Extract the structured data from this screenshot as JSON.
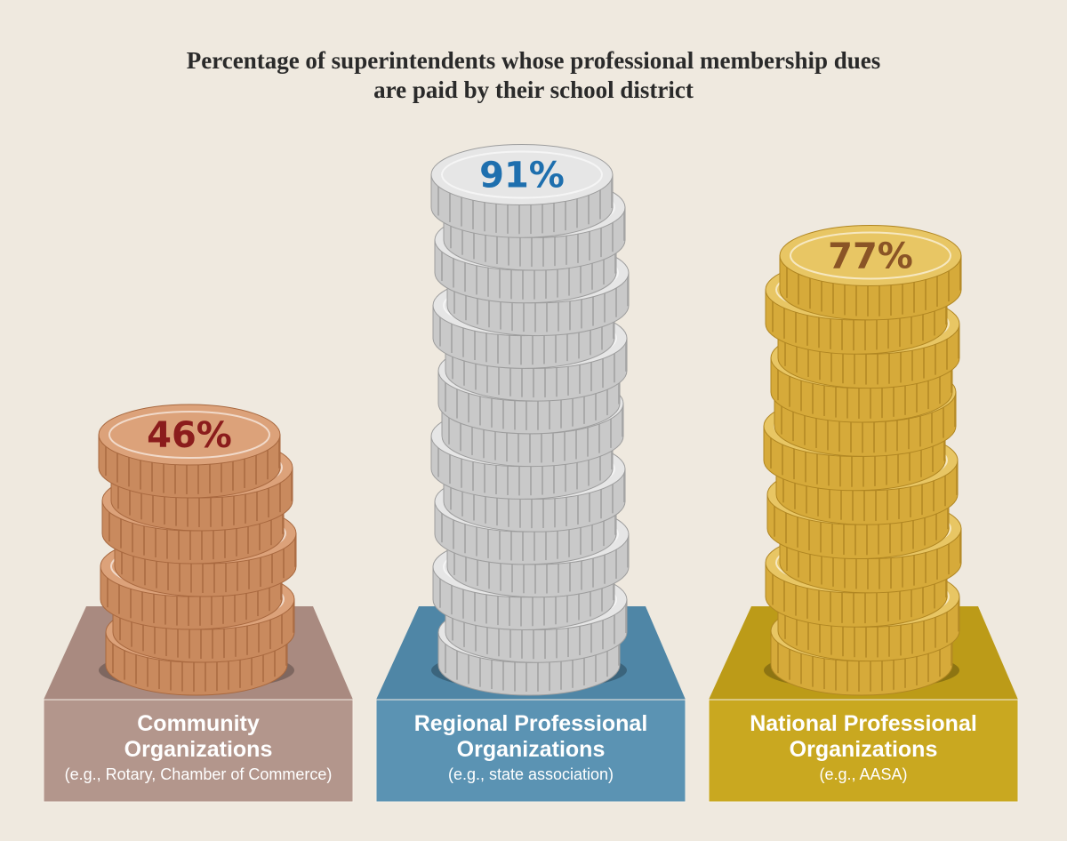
{
  "chart_data": {
    "type": "bar",
    "title": "Percentage of superintendents whose professional membership dues are paid by their school district",
    "title_lines": [
      "Percentage of superintendents whose professional membership dues",
      "are paid by their school district"
    ],
    "categories": [
      "Community Organizations",
      "Regional Professional Organizations",
      "National Professional Organizations"
    ],
    "examples": [
      "(e.g., Rotary, Chamber of Commerce)",
      "(e.g., state association)",
      "(e.g., AASA)"
    ],
    "values": [
      46,
      91,
      77
    ],
    "value_labels": [
      "46%",
      "91%",
      "77%"
    ],
    "ylim": [
      0,
      100
    ],
    "unit": "%",
    "bars": [
      {
        "name_lines": [
          "Community",
          "Organizations"
        ],
        "example": "(e.g., Rotary, Chamber of Commerce)",
        "value": 46,
        "label": "46%",
        "coins": 7,
        "coin_color": "#c98a5e",
        "coin_edge": "#a8683f",
        "coin_face": "#dca27a",
        "pedestal_color": "#b3968c",
        "pedestal_top": "#a98a80",
        "value_color": "#8b1c1c"
      },
      {
        "name_lines": [
          "Regional Professional",
          "Organizations"
        ],
        "example": "(e.g., state association)",
        "value": 91,
        "label": "91%",
        "coins": 15,
        "coin_color": "#c9c9c9",
        "coin_edge": "#9d9d9d",
        "coin_face": "#e6e6e6",
        "pedestal_color": "#5b93b3",
        "pedestal_top": "#4f86a6",
        "value_color": "#1e6fae"
      },
      {
        "name_lines": [
          "National Professional",
          "Organizations"
        ],
        "example": "(e.g., AASA)",
        "value": 77,
        "label": "77%",
        "coins": 12,
        "coin_color": "#d6aa3a",
        "coin_edge": "#b08622",
        "coin_face": "#e8c664",
        "pedestal_color": "#c9a820",
        "pedestal_top": "#bc9b18",
        "value_color": "#8a5426"
      }
    ]
  }
}
